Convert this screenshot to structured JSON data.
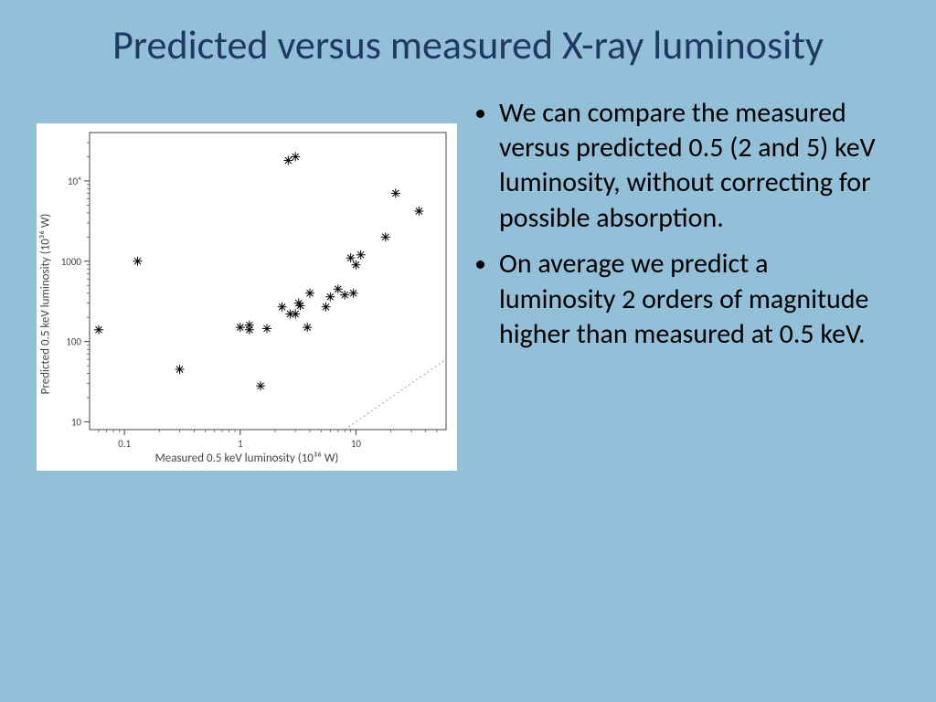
{
  "title": "Predicted versus measured X-ray luminosity",
  "bullets": [
    "We can compare the measured versus predicted 0.5 (2 and 5) keV luminosity, without correcting for possible absorption.",
    "On average we predict a luminosity 2 orders of magnitude higher than measured at 0.5 keV."
  ],
  "chart": {
    "type": "scatter",
    "background_color": "#ffffff",
    "axis_color": "#444444",
    "tick_color": "#444444",
    "marker_color": "#000000",
    "marker_style": "asterisk",
    "marker_size": 5,
    "xlabel": "Measured 0.5 keV luminosity (10³⁶ W)",
    "ylabel": "Predicted 0.5 keV luminosity (10³⁶ W)",
    "label_fontsize": 13,
    "tick_fontsize": 11,
    "xscale": "log",
    "yscale": "log",
    "xlim": [
      0.05,
      60
    ],
    "ylim": [
      8,
      40000
    ],
    "xticks": [
      0.1,
      1,
      10
    ],
    "xtick_labels": [
      "0.1",
      "1",
      "10"
    ],
    "yticks": [
      10,
      100,
      1000,
      10000
    ],
    "ytick_labels": [
      "10",
      "100",
      "1000",
      "10⁴"
    ],
    "diagonal_line": {
      "show": true,
      "style": "dotted",
      "color": "#888888"
    },
    "points": [
      {
        "x": 0.06,
        "y": 140
      },
      {
        "x": 0.13,
        "y": 1000
      },
      {
        "x": 0.3,
        "y": 45
      },
      {
        "x": 1.0,
        "y": 150
      },
      {
        "x": 1.2,
        "y": 140
      },
      {
        "x": 1.2,
        "y": 160
      },
      {
        "x": 1.7,
        "y": 145
      },
      {
        "x": 1.5,
        "y": 28
      },
      {
        "x": 2.3,
        "y": 270
      },
      {
        "x": 2.7,
        "y": 220
      },
      {
        "x": 2.6,
        "y": 18000
      },
      {
        "x": 3.0,
        "y": 20000
      },
      {
        "x": 3.0,
        "y": 220
      },
      {
        "x": 3.2,
        "y": 300
      },
      {
        "x": 3.3,
        "y": 280
      },
      {
        "x": 3.8,
        "y": 150
      },
      {
        "x": 4.0,
        "y": 400
      },
      {
        "x": 5.5,
        "y": 270
      },
      {
        "x": 6.0,
        "y": 360
      },
      {
        "x": 7.0,
        "y": 450
      },
      {
        "x": 8.0,
        "y": 380
      },
      {
        "x": 9.0,
        "y": 1100
      },
      {
        "x": 9.5,
        "y": 400
      },
      {
        "x": 10.0,
        "y": 900
      },
      {
        "x": 11.0,
        "y": 1200
      },
      {
        "x": 18.0,
        "y": 2000
      },
      {
        "x": 22.0,
        "y": 7000
      },
      {
        "x": 35.0,
        "y": 4200
      }
    ]
  },
  "colors": {
    "slide_background": "#93bfd8",
    "title_color": "#1f3864",
    "text_color": "#000000"
  }
}
